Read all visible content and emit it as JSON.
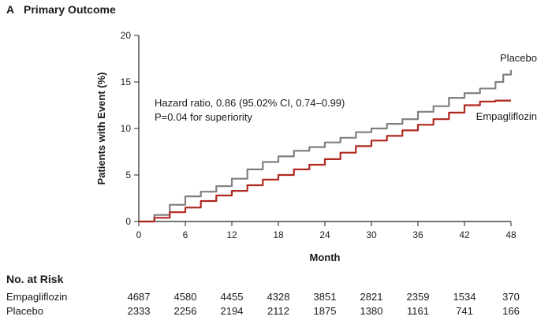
{
  "figure": {
    "panel_letter": "A",
    "title": "Primary Outcome"
  },
  "chart_data": {
    "type": "line",
    "title": "Primary Outcome",
    "xlabel": "Month",
    "ylabel": "Patients with Event (%)",
    "xlim": [
      0,
      48
    ],
    "ylim": [
      0,
      20
    ],
    "xticks": [
      0,
      6,
      12,
      18,
      24,
      30,
      36,
      42,
      48
    ],
    "yticks": [
      0,
      5,
      10,
      15,
      20
    ],
    "grid": false,
    "annotation": [
      "Hazard ratio, 0.86 (95.02% CI, 0.74–0.99)",
      "P=0.04 for superiority"
    ],
    "series": [
      {
        "name": "Placebo",
        "color": "#7f7f7f",
        "x": [
          0,
          2,
          4,
          6,
          8,
          10,
          12,
          14,
          16,
          18,
          20,
          22,
          24,
          26,
          28,
          30,
          32,
          34,
          36,
          38,
          40,
          42,
          44,
          46,
          47,
          48
        ],
        "y": [
          0,
          0.7,
          1.8,
          2.7,
          3.2,
          3.8,
          4.6,
          5.6,
          6.4,
          7.0,
          7.6,
          8.0,
          8.5,
          9.0,
          9.6,
          10.0,
          10.5,
          11.0,
          11.8,
          12.4,
          13.3,
          13.8,
          14.3,
          15.0,
          15.8,
          16.3
        ]
      },
      {
        "name": "Empagliflozin",
        "color": "#b0281f",
        "x": [
          0,
          2,
          4,
          6,
          8,
          10,
          12,
          14,
          16,
          18,
          20,
          22,
          24,
          26,
          28,
          30,
          32,
          34,
          36,
          38,
          40,
          42,
          44,
          46,
          47,
          48
        ],
        "y": [
          0,
          0.4,
          1.0,
          1.5,
          2.2,
          2.8,
          3.3,
          3.9,
          4.5,
          5.0,
          5.6,
          6.1,
          6.7,
          7.4,
          8.1,
          8.7,
          9.2,
          9.8,
          10.4,
          11.0,
          11.7,
          12.5,
          12.9,
          13.0,
          13.0,
          13.0
        ]
      }
    ]
  },
  "risk_table": {
    "title": "No. at Risk",
    "rows": [
      {
        "label": "Empagliflozin",
        "values": [
          "4687",
          "4580",
          "4455",
          "4328",
          "3851",
          "2821",
          "2359",
          "1534",
          "370"
        ]
      },
      {
        "label": "Placebo",
        "values": [
          "2333",
          "2256",
          "2194",
          "2112",
          "1875",
          "1380",
          "1161",
          "741",
          "166"
        ]
      }
    ]
  }
}
